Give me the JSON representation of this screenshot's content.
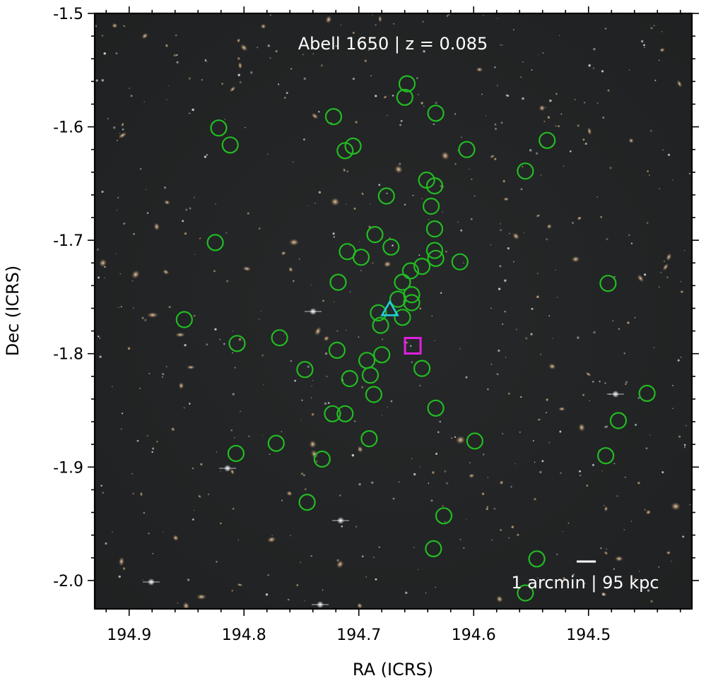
{
  "chart_data": {
    "type": "scatter",
    "title": "Abell 1650 | z = 0.085",
    "xlabel": "RA (ICRS)",
    "ylabel": "Dec (ICRS)",
    "xlim": [
      194.93,
      194.41
    ],
    "ylim": [
      -2.025,
      -1.5
    ],
    "x_reversed": true,
    "xticks": [
      194.9,
      194.8,
      194.7,
      194.6,
      194.5
    ],
    "xtick_labels": [
      "194.9",
      "194.8",
      "194.7",
      "194.6",
      "194.5"
    ],
    "yticks": [
      -1.5,
      -1.6,
      -1.7,
      -1.8,
      -1.9,
      -2.0
    ],
    "ytick_labels": [
      "-1.5",
      "-1.6",
      "-1.7",
      "-1.8",
      "-1.9",
      "-2.0"
    ],
    "grid": false,
    "background": "optical sky image (dark field with galaxies and stars)",
    "scale_bar": {
      "label": "1 arcmin | 95 kpc",
      "length_deg": 0.01667
    },
    "members": {
      "marker": "open circle",
      "color": "#22bb22",
      "points": [
        [
          194.658,
          -1.562
        ],
        [
          194.66,
          -1.574
        ],
        [
          194.633,
          -1.588
        ],
        [
          194.722,
          -1.591
        ],
        [
          194.822,
          -1.601
        ],
        [
          194.812,
          -1.616
        ],
        [
          194.712,
          -1.621
        ],
        [
          194.705,
          -1.617
        ],
        [
          194.606,
          -1.62
        ],
        [
          194.536,
          -1.612
        ],
        [
          194.555,
          -1.639
        ],
        [
          194.641,
          -1.647
        ],
        [
          194.634,
          -1.652
        ],
        [
          194.676,
          -1.661
        ],
        [
          194.637,
          -1.67
        ],
        [
          194.634,
          -1.69
        ],
        [
          194.825,
          -1.702
        ],
        [
          194.686,
          -1.695
        ],
        [
          194.672,
          -1.706
        ],
        [
          194.71,
          -1.71
        ],
        [
          194.698,
          -1.715
        ],
        [
          194.634,
          -1.709
        ],
        [
          194.633,
          -1.716
        ],
        [
          194.612,
          -1.719
        ],
        [
          194.645,
          -1.723
        ],
        [
          194.655,
          -1.727
        ],
        [
          194.662,
          -1.737
        ],
        [
          194.718,
          -1.737
        ],
        [
          194.483,
          -1.738
        ],
        [
          194.654,
          -1.748
        ],
        [
          194.666,
          -1.752
        ],
        [
          194.654,
          -1.755
        ],
        [
          194.683,
          -1.764
        ],
        [
          194.662,
          -1.768
        ],
        [
          194.852,
          -1.77
        ],
        [
          194.681,
          -1.775
        ],
        [
          194.769,
          -1.786
        ],
        [
          194.806,
          -1.791
        ],
        [
          194.719,
          -1.797
        ],
        [
          194.68,
          -1.801
        ],
        [
          194.693,
          -1.806
        ],
        [
          194.645,
          -1.813
        ],
        [
          194.747,
          -1.814
        ],
        [
          194.69,
          -1.819
        ],
        [
          194.708,
          -1.822
        ],
        [
          194.687,
          -1.836
        ],
        [
          194.449,
          -1.835
        ],
        [
          194.633,
          -1.848
        ],
        [
          194.723,
          -1.853
        ],
        [
          194.712,
          -1.853
        ],
        [
          194.474,
          -1.859
        ],
        [
          194.691,
          -1.875
        ],
        [
          194.599,
          -1.877
        ],
        [
          194.772,
          -1.879
        ],
        [
          194.807,
          -1.888
        ],
        [
          194.485,
          -1.89
        ],
        [
          194.732,
          -1.893
        ],
        [
          194.745,
          -1.931
        ],
        [
          194.626,
          -1.943
        ],
        [
          194.635,
          -1.972
        ],
        [
          194.545,
          -1.981
        ],
        [
          194.555,
          -2.011
        ]
      ]
    },
    "special_markers": [
      {
        "marker": "triangle",
        "color": "#22d0d8",
        "x": 194.673,
        "y": -1.761
      },
      {
        "marker": "square",
        "color": "#e020e0",
        "x": 194.653,
        "y": -1.793
      }
    ]
  }
}
